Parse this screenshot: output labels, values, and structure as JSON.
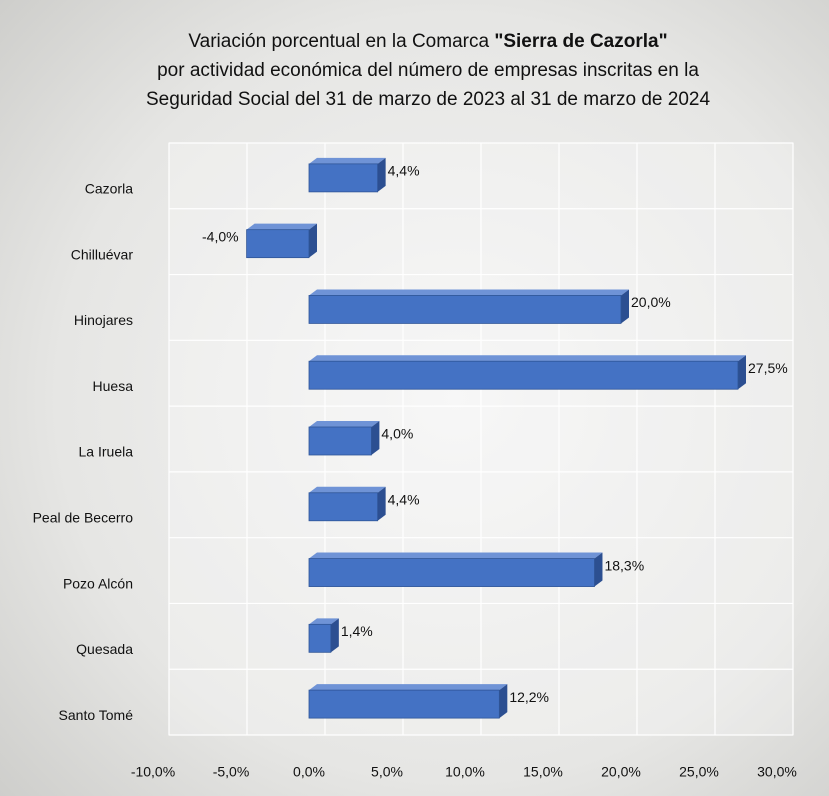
{
  "chart_data": {
    "type": "bar",
    "orientation": "horizontal",
    "title": {
      "line1": "Variación porcentual en la Comarca",
      "line1_bold": "\"Sierra de Cazorla\"",
      "line2": "por actividad económica del número de empresas inscritas en la",
      "line3": "Seguridad Social del 31 de marzo de 2023 al 31 de marzo de 2024"
    },
    "categories": [
      "Cazorla",
      "Chilluévar",
      "Hinojares",
      "Huesa",
      "La Iruela",
      "Peal de Becerro",
      "Pozo Alcón",
      "Quesada",
      "Santo Tomé"
    ],
    "values": [
      4.4,
      -4.0,
      20.0,
      27.5,
      4.0,
      4.4,
      18.3,
      1.4,
      12.2
    ],
    "value_labels": [
      "4,4%",
      "-4,0%",
      "20,0%",
      "27,5%",
      "4,0%",
      "4,4%",
      "18,3%",
      "1,4%",
      "12,2%"
    ],
    "color": "#4472c4",
    "xlim": [
      -10,
      30
    ],
    "xticks": [
      {
        "value": -10,
        "label": "-10,0%"
      },
      {
        "value": -5,
        "label": "-5,0%"
      },
      {
        "value": 0,
        "label": "0,0%"
      },
      {
        "value": 5,
        "label": "5,0%"
      },
      {
        "value": 10,
        "label": "10,0%"
      },
      {
        "value": 15,
        "label": "15,0%"
      },
      {
        "value": 20,
        "label": "20,0%"
      },
      {
        "value": 25,
        "label": "25,0%"
      },
      {
        "value": 30,
        "label": "30,0%"
      }
    ],
    "grid": true
  }
}
